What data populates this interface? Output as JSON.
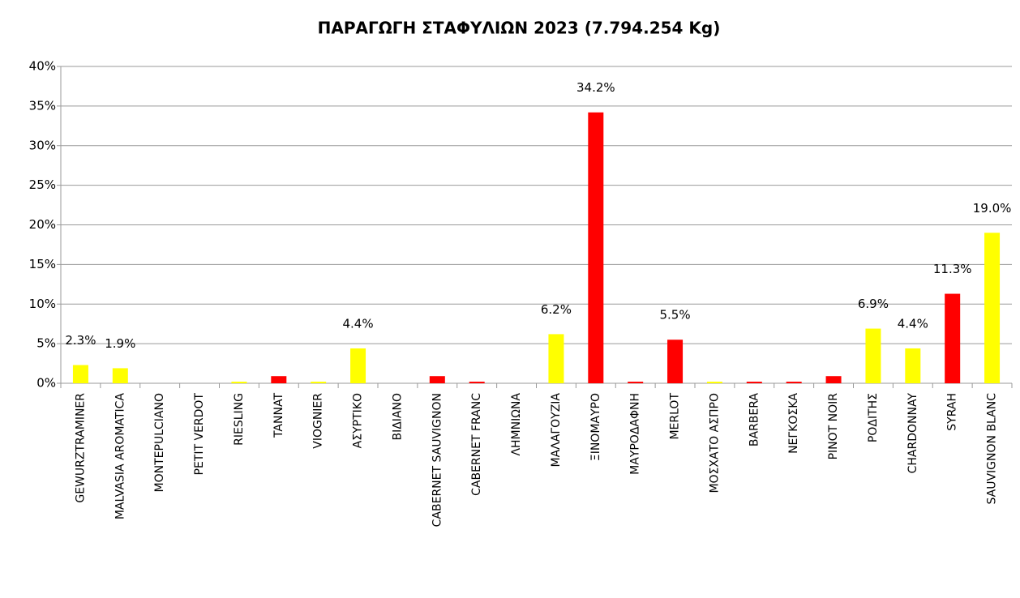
{
  "chart_data": {
    "type": "bar",
    "title": "ΠΑΡΑΓΩΓΗ ΣΤΑΦΥΛΙΩΝ 2023 (7.794.254 Kg)",
    "categories": [
      "GEWURZTRAMINER",
      "MALVASIA AROMATICA",
      "MONTEPULCIANO",
      "PETIT VERDOT",
      "RIESLING",
      "TANNAT",
      "VIOGNIER",
      "ΑΣΥΡΤΙΚΟ",
      "ΒΙΔΙΑΝΟ",
      "CABERNET SAUVIGNON",
      "CABERNET FRANC",
      "ΛΗΜΝΙΩΝΑ",
      "ΜΑΛΑΓΟΥΖΙΑ",
      "ΞΙΝΟΜΑΥΡΟ",
      "ΜΑΥΡΟΔΑΦΝΗ",
      "MERLOT",
      "ΜΟΣΧΑΤΟ ΑΣΠΡΟ",
      "BARBERA",
      "ΝΕΓΚΟΣΚΑ",
      "PINOT NOIR",
      "ΡΟΔΙΤΗΣ",
      "CHARDONNAY",
      "SYRAH",
      "SAUVIGNON BLANC"
    ],
    "values": [
      2.3,
      1.9,
      0,
      0,
      0.2,
      0.9,
      0.2,
      4.4,
      0,
      0.9,
      0.2,
      0,
      6.2,
      34.2,
      0.2,
      5.5,
      0.2,
      0.2,
      0.2,
      0.9,
      6.9,
      4.4,
      11.3,
      19.0
    ],
    "value_labels": [
      "2.3%",
      "1.9%",
      null,
      null,
      null,
      null,
      null,
      "4.4%",
      null,
      null,
      null,
      null,
      "6.2%",
      "34.2%",
      null,
      "5.5%",
      null,
      null,
      null,
      null,
      "6.9%",
      "4.4%",
      "11.3%",
      "19.0%"
    ],
    "colors": [
      "#ffff00",
      "#ffff00",
      "#ffff00",
      "#ff0000",
      "#ffff00",
      "#ff0000",
      "#ffff00",
      "#ffff00",
      "#ffff00",
      "#ff0000",
      "#ff0000",
      "#ff0000",
      "#ffff00",
      "#ff0000",
      "#ff0000",
      "#ff0000",
      "#ffff00",
      "#ff0000",
      "#ff0000",
      "#ff0000",
      "#ffff00",
      "#ffff00",
      "#ff0000",
      "#ffff00"
    ],
    "ylim": [
      0,
      40
    ],
    "yticks": [
      {
        "value": 0,
        "label": "0%"
      },
      {
        "value": 5,
        "label": "5%"
      },
      {
        "value": 10,
        "label": "10%"
      },
      {
        "value": 15,
        "label": "15%"
      },
      {
        "value": 20,
        "label": "20%"
      },
      {
        "value": 25,
        "label": "25%"
      },
      {
        "value": 30,
        "label": "30%"
      },
      {
        "value": 35,
        "label": "35%"
      },
      {
        "value": 40,
        "label": "40%"
      }
    ],
    "grid": true
  }
}
